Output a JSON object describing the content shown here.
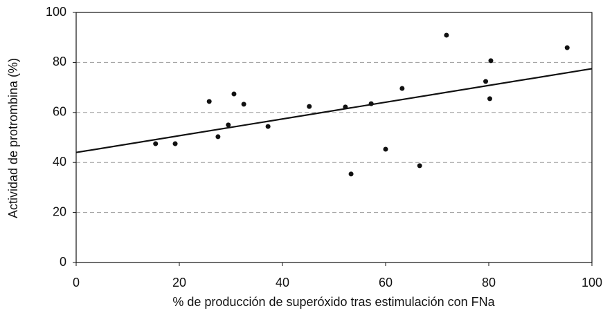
{
  "chart_data": {
    "type": "scatter",
    "xlabel": "% de producción de superóxido tras estimulación con FNa",
    "ylabel": "Actividad de protrombina (%)",
    "x": [
      15.4,
      19.2,
      25.8,
      27.5,
      29.5,
      30.6,
      32.5,
      37.2,
      45.2,
      52.2,
      53.3,
      57.2,
      60,
      63.2,
      66.6,
      71.8,
      79.4,
      80.2,
      80.4,
      95.2
    ],
    "values": [
      47.5,
      47.5,
      64.4,
      50.3,
      55,
      67.4,
      63.3,
      54.4,
      62.4,
      62.2,
      35.4,
      63.5,
      45.3,
      69.6,
      38.7,
      90.9,
      72.4,
      65.5,
      80.7,
      85.9
    ],
    "color": "#111111",
    "trendline": {
      "x": [
        0,
        100
      ],
      "y": [
        44,
        77.5
      ],
      "color": "#111111"
    },
    "xlim": [
      0,
      100
    ],
    "xticks": [
      0,
      20,
      40,
      60,
      80,
      100
    ],
    "ylim": [
      0,
      100
    ],
    "yticks": [
      0,
      20,
      40,
      60,
      80,
      100
    ],
    "grid": true
  }
}
